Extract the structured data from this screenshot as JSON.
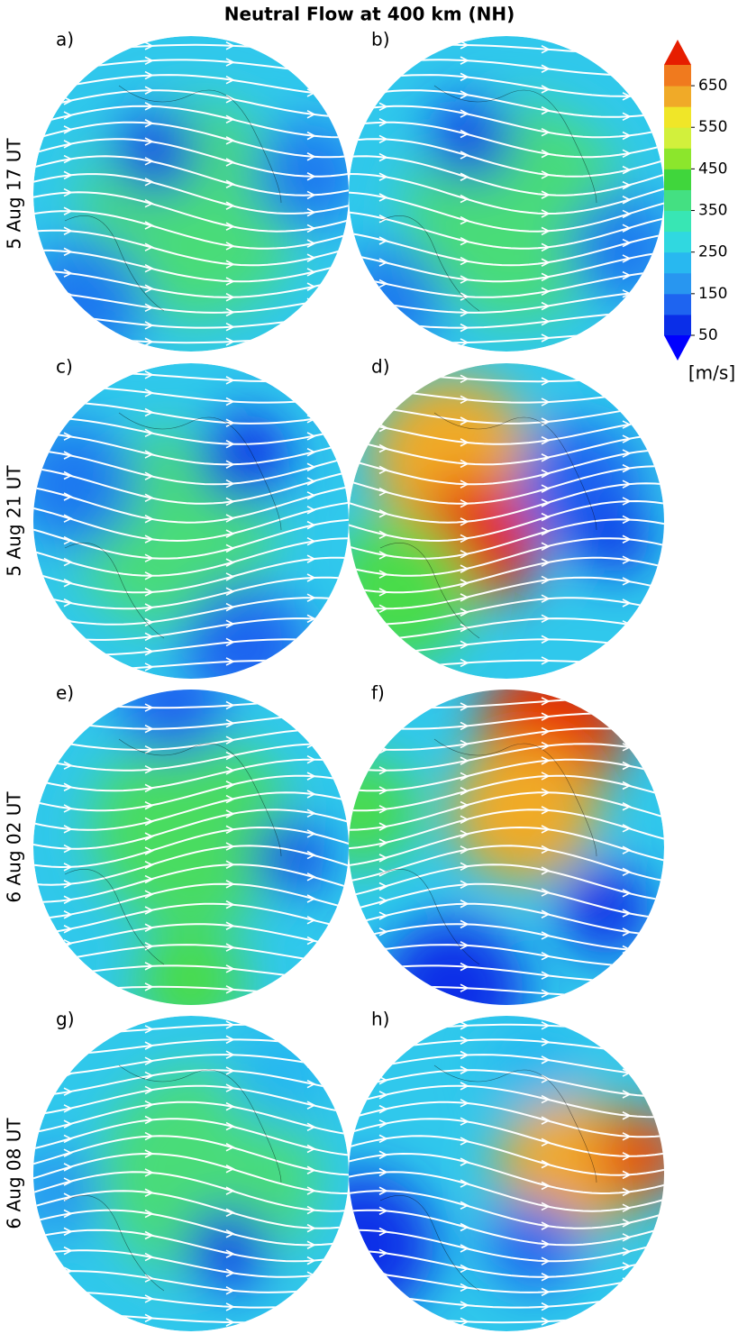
{
  "title": "Neutral Flow at 400 km (NH)",
  "panels": [
    {
      "label": "a)"
    },
    {
      "label": "b)"
    },
    {
      "label": "c)"
    },
    {
      "label": "d)"
    },
    {
      "label": "e)"
    },
    {
      "label": "f)"
    },
    {
      "label": "g)"
    },
    {
      "label": "h)"
    }
  ],
  "rows": [
    "5 Aug 17 UT",
    "5 Aug 21 UT",
    "6 Aug 02 UT",
    "6 Aug 08 UT"
  ],
  "colorbar": {
    "lim": [
      50,
      700
    ],
    "ticks": [
      50,
      150,
      250,
      350,
      450,
      550,
      650
    ],
    "colors": [
      "#0a2ee8",
      "#1e64f0",
      "#2896f0",
      "#28b8f0",
      "#30d8e0",
      "#38e6b4",
      "#44e082",
      "#40d63c",
      "#8ce62c",
      "#d2f03c",
      "#f0e628",
      "#f0aa28",
      "#f07a1e"
    ],
    "under_color": "#0000ff",
    "over_color": "#e61e00",
    "unit": "[m/s]"
  }
}
